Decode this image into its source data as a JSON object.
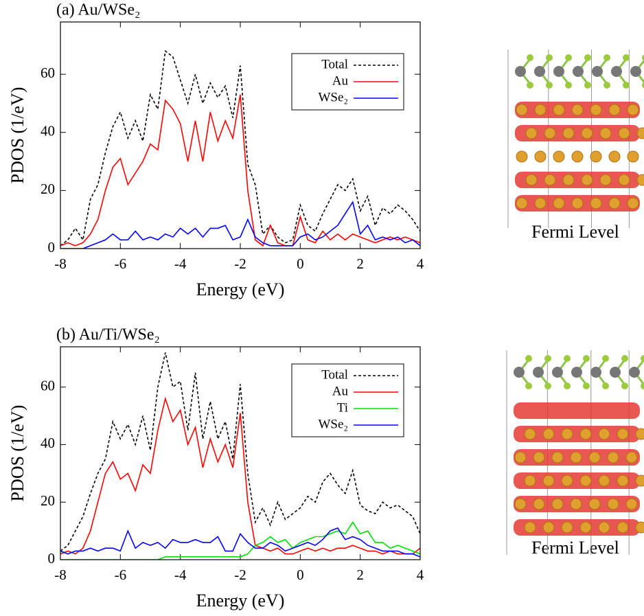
{
  "chart_data": [
    {
      "type": "line",
      "title": "(a) Au/WSe₂",
      "xlabel": "Energy (eV)",
      "ylabel": "PDOS (1/eV)",
      "x": [
        -8,
        -7.75,
        -7.5,
        -7.25,
        -7,
        -6.75,
        -6.5,
        -6.25,
        -6,
        -5.75,
        -5.5,
        -5.25,
        -5,
        -4.75,
        -4.5,
        -4.25,
        -4,
        -3.75,
        -3.5,
        -3.25,
        -3,
        -2.75,
        -2.5,
        -2.25,
        -2,
        -1.75,
        -1.5,
        -1.25,
        -1,
        -0.75,
        -0.5,
        -0.25,
        0,
        0.25,
        0.5,
        0.75,
        1,
        1.25,
        1.5,
        1.75,
        2,
        2.25,
        2.5,
        2.75,
        3,
        3.25,
        3.5,
        3.75,
        4
      ],
      "series": [
        {
          "name": "Total",
          "color": "#000000",
          "dashed": true,
          "values": [
            1,
            3,
            7,
            3,
            17,
            22,
            33,
            42,
            47,
            38,
            44,
            37,
            53,
            48,
            68,
            66,
            58,
            50,
            60,
            50,
            57,
            52,
            56,
            45,
            63,
            29,
            22,
            5,
            8,
            4,
            2,
            3,
            15,
            8,
            6,
            12,
            17,
            22,
            20,
            24,
            13,
            18,
            8,
            14,
            12,
            15,
            13,
            10,
            6
          ]
        },
        {
          "name": "Au",
          "color": "#ff0000",
          "values": [
            1,
            2,
            1,
            2,
            5,
            10,
            20,
            28,
            31,
            22,
            26,
            30,
            36,
            34,
            51,
            48,
            43,
            30,
            44,
            30,
            47,
            37,
            44,
            38,
            53,
            20,
            3,
            1,
            8,
            2,
            1,
            1,
            11,
            3,
            2,
            6,
            3,
            5,
            3,
            5,
            4,
            3,
            2,
            3,
            4,
            3,
            4,
            3,
            2
          ]
        },
        {
          "name": "WSe₂",
          "color": "#0000ff",
          "values": [
            0,
            0,
            0,
            0,
            1,
            2,
            3,
            5,
            3,
            3,
            6,
            3,
            4,
            3,
            5,
            4,
            7,
            5,
            7,
            4,
            7,
            7,
            8,
            3,
            4,
            10,
            4,
            2,
            1,
            1,
            1,
            1,
            4,
            5,
            3,
            4,
            6,
            8,
            12,
            16,
            5,
            8,
            3,
            4,
            3,
            4,
            2,
            3,
            1
          ]
        }
      ],
      "xlim": [
        -8,
        4
      ],
      "ylim": [
        0,
        78
      ],
      "xticks": [
        -8,
        -6,
        -4,
        -2,
        0,
        2,
        4
      ],
      "yticks": [
        0,
        20,
        40,
        60
      ],
      "legend": "upper right"
    },
    {
      "type": "line",
      "title": "(b) Au/Ti/WSe₂",
      "xlabel": "Energy (eV)",
      "ylabel": "PDOS (1/eV)",
      "x": [
        -8,
        -7.75,
        -7.5,
        -7.25,
        -7,
        -6.75,
        -6.5,
        -6.25,
        -6,
        -5.75,
        -5.5,
        -5.25,
        -5,
        -4.75,
        -4.5,
        -4.25,
        -4,
        -3.75,
        -3.5,
        -3.25,
        -3,
        -2.75,
        -2.5,
        -2.25,
        -2,
        -1.75,
        -1.5,
        -1.25,
        -1,
        -0.75,
        -0.5,
        -0.25,
        0,
        0.25,
        0.5,
        0.75,
        1,
        1.25,
        1.5,
        1.75,
        2,
        2.25,
        2.5,
        2.75,
        3,
        3.25,
        3.5,
        3.75,
        4
      ],
      "series": [
        {
          "name": "Total",
          "color": "#000000",
          "dashed": true,
          "values": [
            3,
            5,
            10,
            15,
            23,
            30,
            35,
            48,
            42,
            47,
            40,
            50,
            38,
            60,
            72,
            60,
            62,
            45,
            65,
            42,
            55,
            42,
            48,
            35,
            61,
            30,
            13,
            18,
            12,
            20,
            14,
            16,
            18,
            22,
            20,
            27,
            30,
            26,
            23,
            31,
            19,
            17,
            16,
            20,
            18,
            19,
            17,
            15,
            9
          ]
        },
        {
          "name": "Au",
          "color": "#ff0000",
          "values": [
            2,
            3,
            2,
            4,
            10,
            20,
            30,
            34,
            28,
            30,
            24,
            33,
            30,
            45,
            56,
            48,
            52,
            40,
            46,
            32,
            42,
            34,
            40,
            32,
            51,
            20,
            5,
            4,
            3,
            4,
            2,
            2,
            3,
            4,
            3,
            4,
            3,
            4,
            4,
            5,
            4,
            3,
            3,
            2,
            3,
            2,
            2,
            2,
            4
          ]
        },
        {
          "name": "Ti",
          "color": "#00dd00",
          "values": [
            0,
            0,
            0,
            0,
            0,
            0,
            0,
            0,
            0,
            0,
            0,
            0,
            0,
            0,
            1,
            1,
            1,
            1,
            1,
            1,
            1,
            1,
            1,
            1,
            1,
            2,
            5,
            6,
            8,
            6,
            7,
            4,
            6,
            7,
            8,
            8,
            9,
            10,
            9,
            13,
            9,
            10,
            6,
            6,
            4,
            5,
            4,
            3,
            2
          ]
        },
        {
          "name": "WSe₂",
          "color": "#0000ff",
          "values": [
            3,
            2,
            3,
            3,
            4,
            3,
            4,
            4,
            3,
            10,
            4,
            6,
            5,
            6,
            4,
            7,
            6,
            6,
            7,
            6,
            6,
            8,
            3,
            3,
            9,
            6,
            4,
            4,
            6,
            5,
            3,
            4,
            5,
            6,
            5,
            7,
            10,
            11,
            7,
            8,
            7,
            5,
            4,
            3,
            3,
            3,
            2,
            2,
            1
          ]
        }
      ],
      "xlim": [
        -8,
        4
      ],
      "ylim": [
        0,
        74
      ],
      "xticks": [
        -8,
        -6,
        -4,
        -2,
        0,
        2,
        4
      ],
      "yticks": [
        0,
        20,
        40,
        60
      ],
      "legend": "upper right"
    }
  ],
  "panels": [
    {
      "caption": "Fermi Level"
    },
    {
      "caption": "Fermi Level"
    }
  ]
}
